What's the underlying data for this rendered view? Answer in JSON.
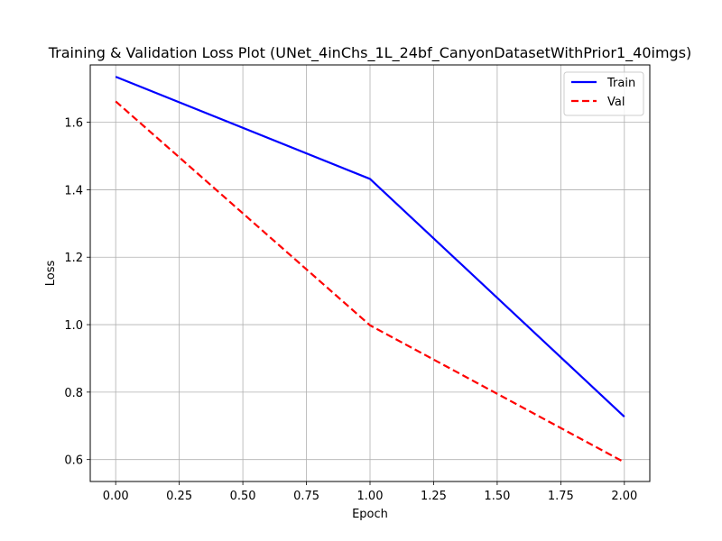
{
  "chart_data": {
    "type": "line",
    "title": "Training & Validation Loss Plot (UNet_4inChs_1L_24bf_CanyonDatasetWithPrior1_40imgs)",
    "xlabel": "Epoch",
    "ylabel": "Loss",
    "x": [
      0,
      1,
      2
    ],
    "xlim": [
      -0.1,
      2.1
    ],
    "ylim": [
      0.535,
      1.77
    ],
    "xticks": [
      0.0,
      0.25,
      0.5,
      0.75,
      1.0,
      1.25,
      1.5,
      1.75,
      2.0
    ],
    "xtick_labels": [
      "0.00",
      "0.25",
      "0.50",
      "0.75",
      "1.00",
      "1.25",
      "1.50",
      "1.75",
      "2.00"
    ],
    "yticks": [
      0.6,
      0.8,
      1.0,
      1.2,
      1.4,
      1.6
    ],
    "ytick_labels": [
      "0.6",
      "0.8",
      "1.0",
      "1.2",
      "1.4",
      "1.6"
    ],
    "grid": true,
    "legend_position": "top-right",
    "series": [
      {
        "name": "Train",
        "values": [
          1.735,
          1.432,
          0.727
        ],
        "color": "#0000ff",
        "style": "solid"
      },
      {
        "name": "Val",
        "values": [
          1.662,
          0.998,
          0.592
        ],
        "color": "#ff0000",
        "style": "dashed"
      }
    ]
  }
}
